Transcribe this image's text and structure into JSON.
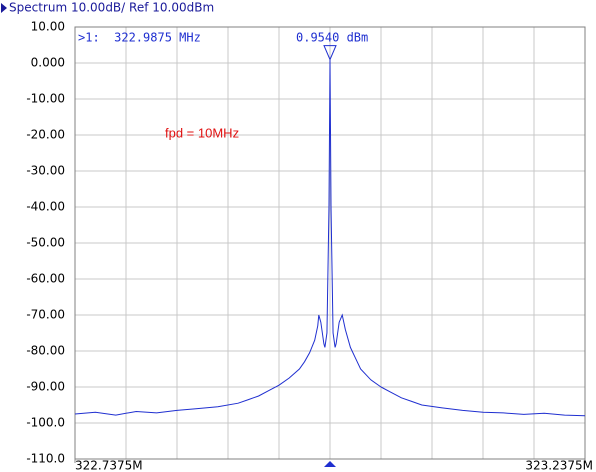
{
  "chart_data": {
    "type": "line",
    "title": "Spectrum 10.00dB/ Ref 10.00dBm",
    "annotation": "fpd = 10MHz",
    "color": "#1f2fd0",
    "grid": true,
    "x_divisions": 10,
    "xlim": [
      322.7375,
      323.2375
    ],
    "xticks": [
      {
        "value": 322.7375,
        "label": "322.7375M"
      },
      {
        "value": 323.2375,
        "label": "323.2375M"
      }
    ],
    "ylim": [
      -110,
      10
    ],
    "yticks": [
      {
        "value": 10,
        "label": "10.00"
      },
      {
        "value": 0,
        "label": "0.000"
      },
      {
        "value": -10,
        "label": "-10.00"
      },
      {
        "value": -20,
        "label": "-20.00"
      },
      {
        "value": -30,
        "label": "-30.00"
      },
      {
        "value": -40,
        "label": "-40.00"
      },
      {
        "value": -50,
        "label": "-50.00"
      },
      {
        "value": -60,
        "label": "-60.00"
      },
      {
        "value": -70,
        "label": "-70.00"
      },
      {
        "value": -80,
        "label": "-80.00"
      },
      {
        "value": -90,
        "label": "-90.00"
      },
      {
        "value": -100,
        "label": "-100.0"
      },
      {
        "value": -110,
        "label": "-110.0"
      }
    ],
    "marker": {
      "x": 322.9875,
      "y": 0.954,
      "text": ">1:  322.9875 MHz",
      "value_text": "0.9540 dBm"
    },
    "x": [
      322.7375,
      322.7575,
      322.7775,
      322.7975,
      322.8175,
      322.8375,
      322.8575,
      322.8775,
      322.8975,
      322.9075,
      322.9175,
      322.9275,
      322.9375,
      322.9475,
      322.9575,
      322.9625,
      322.9675,
      322.9725,
      322.9755,
      322.9765,
      322.9785,
      322.9815,
      322.9825,
      322.9845,
      322.9865,
      322.9875,
      322.9885,
      322.9905,
      322.9925,
      322.9935,
      322.9965,
      322.9995,
      323.0025,
      323.0075,
      323.0125,
      323.0175,
      323.0275,
      323.0375,
      323.0475,
      323.0575,
      323.0675,
      323.0775,
      323.0975,
      323.1175,
      323.1375,
      323.1575,
      323.1775,
      323.1975,
      323.2175,
      323.2375
    ],
    "values": [
      -97.5,
      -97,
      -97.8,
      -96.8,
      -97.2,
      -96.5,
      -96,
      -95.5,
      -94.5,
      -93.5,
      -92.5,
      -91,
      -89.5,
      -87.5,
      -85,
      -83,
      -80.5,
      -77,
      -73,
      -70,
      -72,
      -78,
      -79,
      -75,
      -40,
      0.954,
      -40,
      -75,
      -79,
      -78,
      -72,
      -70,
      -74,
      -79,
      -82,
      -85,
      -88,
      -90,
      -91.5,
      -93,
      -94,
      -95,
      -95.8,
      -96.5,
      -97,
      -97.2,
      -97.6,
      -97.3,
      -97.8,
      -98
    ]
  }
}
